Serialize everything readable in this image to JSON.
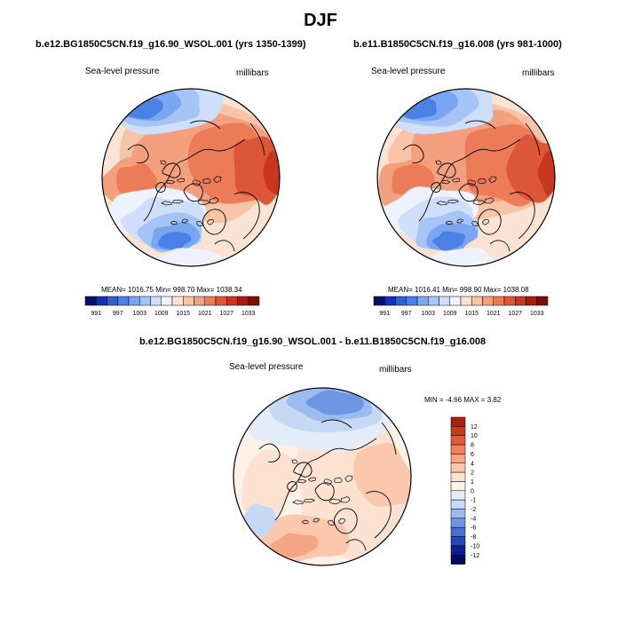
{
  "header": {
    "title": "DJF"
  },
  "chart_data": [
    {
      "type": "contour-map",
      "projection": "north polar stereographic",
      "case_title": "b.e12.BG1850C5CN.f19_g16.90_WSOL.001 (yrs 1350-1399)",
      "variable": "Sea-level pressure",
      "units": "millibars",
      "stats_text": "MEAN= 1016.75  Min= 998.70  Max= 1038.34",
      "mean": 1016.75,
      "min": 998.7,
      "max": 1038.34,
      "colorbar": {
        "orientation": "horizontal",
        "levels": [
          "991",
          "997",
          "1003",
          "1009",
          "1015",
          "1021",
          "1027",
          "1033"
        ],
        "colors": [
          "#08106b",
          "#1a2fb8",
          "#2f5fd6",
          "#4b80e6",
          "#7aa5f0",
          "#a6c4f5",
          "#cfdff9",
          "#eef2fb",
          "#fbe3d3",
          "#f8c4a8",
          "#f4a07f",
          "#ec7b58",
          "#dd5637",
          "#c9361f",
          "#a81d0f",
          "#7d0c06"
        ]
      }
    },
    {
      "type": "contour-map",
      "projection": "north polar stereographic",
      "case_title": "b.e11.B1850C5CN.f19_g16.008 (yrs 981-1000)",
      "variable": "Sea-level pressure",
      "units": "millibars",
      "stats_text": "MEAN= 1016.41  Min= 998.90  Max= 1038.08",
      "mean": 1016.41,
      "min": 998.9,
      "max": 1038.08,
      "colorbar": {
        "orientation": "horizontal",
        "levels": [
          "991",
          "997",
          "1003",
          "1009",
          "1015",
          "1021",
          "1027",
          "1033"
        ],
        "colors": [
          "#08106b",
          "#1a2fb8",
          "#2f5fd6",
          "#4b80e6",
          "#7aa5f0",
          "#a6c4f5",
          "#cfdff9",
          "#eef2fb",
          "#fbe3d3",
          "#f8c4a8",
          "#f4a07f",
          "#ec7b58",
          "#dd5637",
          "#c9361f",
          "#a81d0f",
          "#7d0c06"
        ]
      }
    },
    {
      "type": "contour-map",
      "projection": "north polar stereographic",
      "case_title": "b.e12.BG1850C5CN.f19_g16.90_WSOL.001 - b.e11.B1850C5CN.f19_g16.008",
      "variable": "Sea-level pressure",
      "units": "millibars",
      "stats_text": "MIN =  -4.66 MAX =   3.82",
      "min": -4.66,
      "max": 3.82,
      "colorbar": {
        "orientation": "vertical",
        "levels": [
          "12",
          "10",
          "8",
          "6",
          "4",
          "2",
          "1",
          "0",
          "-1",
          "-2",
          "-4",
          "-6",
          "-8",
          "-10",
          "-12"
        ],
        "colors": [
          "#a8210f",
          "#cc3a1e",
          "#e25a3a",
          "#f0805e",
          "#f6a584",
          "#fbc8ad",
          "#fde2d2",
          "#fdf1e8",
          "#e4ecf8",
          "#c6d8f3",
          "#9dbcee",
          "#6f96e3",
          "#4470d6",
          "#2346b8",
          "#0b1f93",
          "#050c5c"
        ]
      }
    }
  ]
}
